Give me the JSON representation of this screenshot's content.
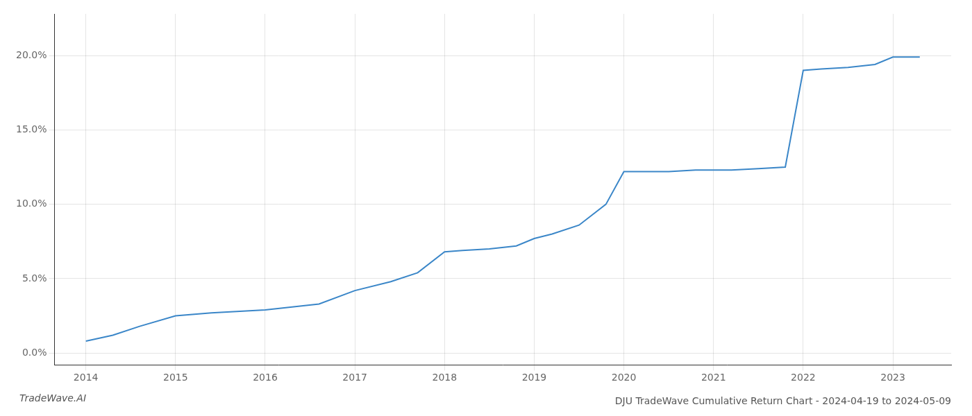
{
  "chart_data": {
    "type": "line",
    "title": "DJU TradeWave Cumulative Return Chart - 2024-04-19 to 2024-05-09",
    "annotations": [
      "TradeWave.AI"
    ],
    "x": [
      2014.0,
      2014.3,
      2014.6,
      2015.0,
      2015.4,
      2016.0,
      2016.3,
      2016.6,
      2017.0,
      2017.4,
      2017.7,
      2018.0,
      2018.2,
      2018.5,
      2018.8,
      2019.0,
      2019.2,
      2019.5,
      2019.8,
      2020.0,
      2020.2,
      2020.5,
      2020.8,
      2021.0,
      2021.2,
      2021.5,
      2021.8,
      2022.0,
      2022.2,
      2022.5,
      2022.8,
      2023.0,
      2023.3
    ],
    "values": [
      0.008,
      0.012,
      0.018,
      0.025,
      0.027,
      0.029,
      0.031,
      0.033,
      0.042,
      0.048,
      0.054,
      0.068,
      0.069,
      0.07,
      0.072,
      0.077,
      0.08,
      0.086,
      0.1,
      0.122,
      0.122,
      0.122,
      0.123,
      0.123,
      0.123,
      0.124,
      0.125,
      0.19,
      0.191,
      0.192,
      0.194,
      0.199,
      0.199
    ],
    "color": "#3a86c8",
    "xlim": [
      2013.65,
      2023.65
    ],
    "xticks": [
      2014,
      2015,
      2016,
      2017,
      2018,
      2019,
      2020,
      2021,
      2022,
      2023
    ],
    "ylim": [
      -0.008,
      0.228
    ],
    "yticks": [
      {
        "value": 0.0,
        "label": "0.0%"
      },
      {
        "value": 0.05,
        "label": "5.0%"
      },
      {
        "value": 0.1,
        "label": "10.0%"
      },
      {
        "value": 0.15,
        "label": "15.0%"
      },
      {
        "value": 0.2,
        "label": "20.0%"
      }
    ],
    "grid": true
  }
}
